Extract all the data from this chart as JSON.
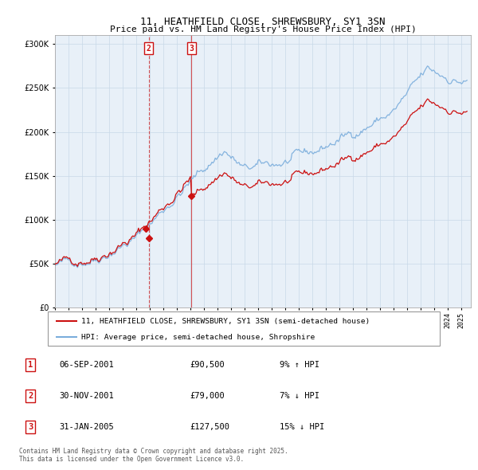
{
  "title": "11, HEATHFIELD CLOSE, SHREWSBURY, SY1 3SN",
  "subtitle": "Price paid vs. HM Land Registry's House Price Index (HPI)",
  "legend_line1": "11, HEATHFIELD CLOSE, SHREWSBURY, SY1 3SN (semi-detached house)",
  "legend_line2": "HPI: Average price, semi-detached house, Shropshire",
  "transactions": [
    {
      "num": 1,
      "date": "06-SEP-2001",
      "price": "£90,500",
      "hpi": "9% ↑ HPI",
      "year": 2001.68,
      "value": 90500
    },
    {
      "num": 2,
      "date": "30-NOV-2001",
      "price": "£79,000",
      "hpi": "7% ↓ HPI",
      "year": 2001.92,
      "value": 79000
    },
    {
      "num": 3,
      "date": "31-JAN-2005",
      "price": "£127,500",
      "hpi": "15% ↓ HPI",
      "year": 2005.08,
      "value": 127500
    }
  ],
  "copyright": "Contains HM Land Registry data © Crown copyright and database right 2025.\nThis data is licensed under the Open Government Licence v3.0.",
  "hpi_color": "#7aaddc",
  "price_color": "#cc1111",
  "marker_color": "#cc1111",
  "bg_color": "#e8f0f8",
  "grid_color": "#c8d8e8",
  "ylim": [
    0,
    310000
  ],
  "xlim_start": 1995.0,
  "xlim_end": 2025.7
}
